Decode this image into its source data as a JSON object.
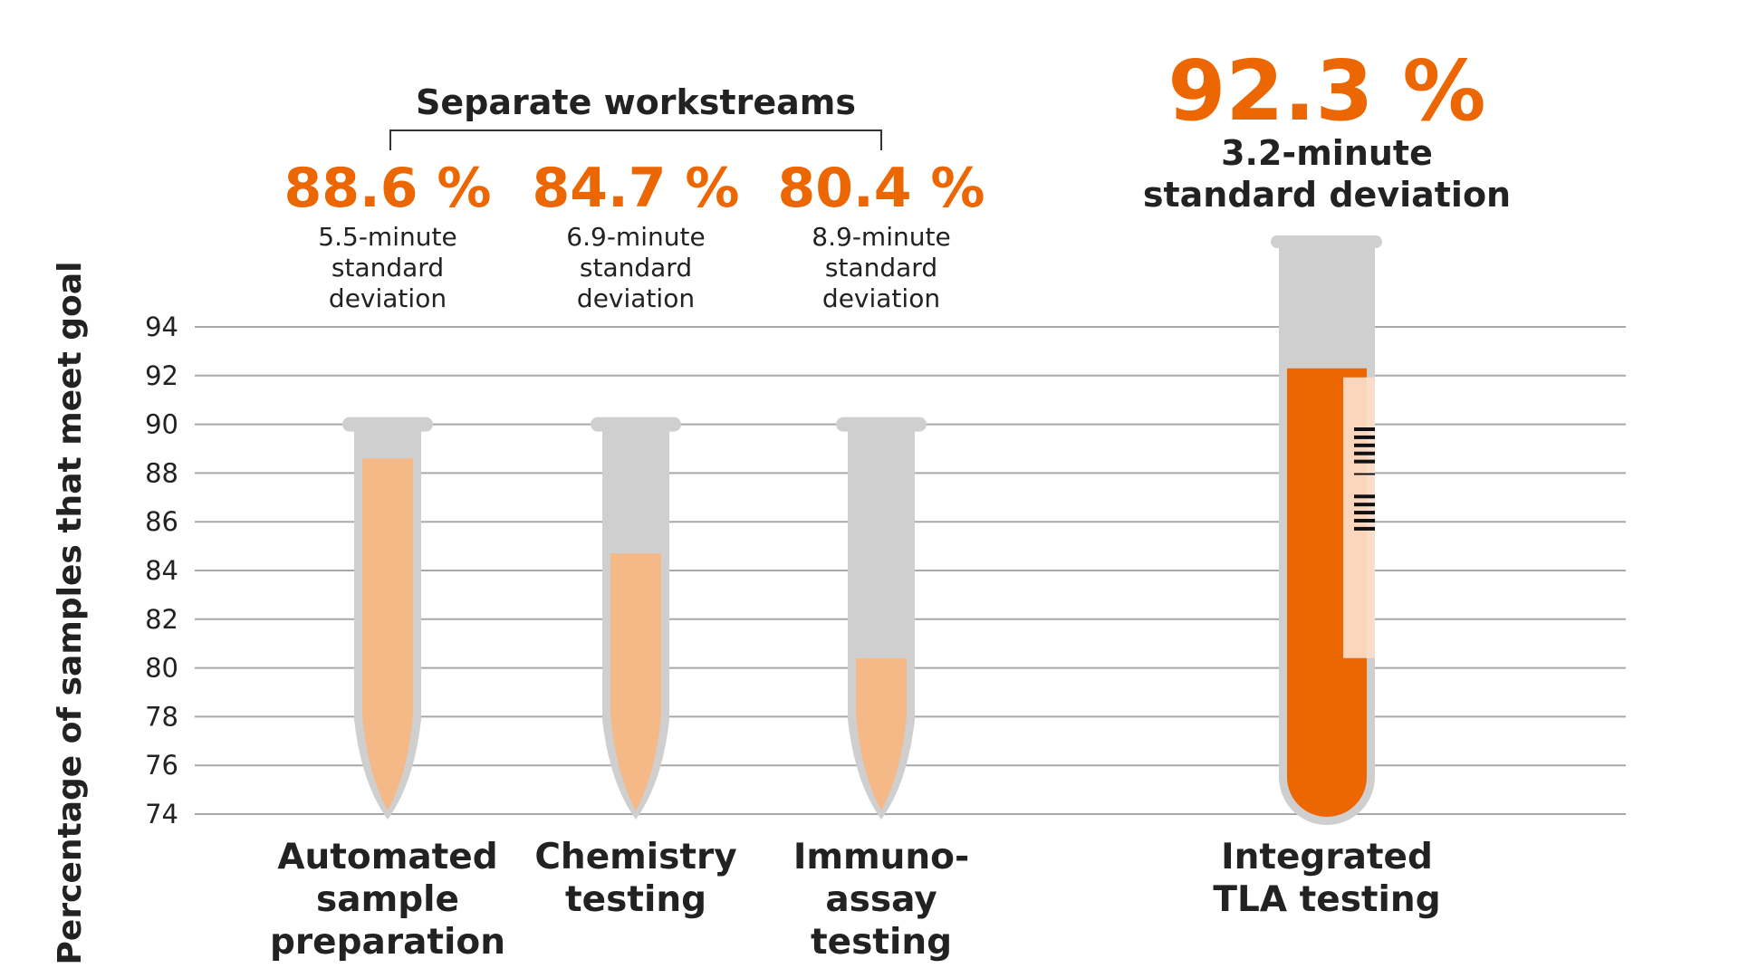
{
  "colors": {
    "accent": "#ec6602",
    "light_fill": "#f5b887",
    "tube": "#cfcfcf",
    "grid": "#a8a8a8",
    "label_strip": "#fde0cc"
  },
  "chart_data": {
    "type": "bar",
    "ylabel": "Percentage of samples that meet goal",
    "ylim": [
      74,
      94
    ],
    "yticks": [
      94,
      92,
      90,
      88,
      86,
      84,
      82,
      80,
      78,
      76,
      74
    ],
    "grid": true,
    "group_label": "Separate workstreams",
    "categories": [
      {
        "label_lines": [
          "Automated",
          "sample",
          "preparation"
        ],
        "value": 88.6,
        "value_label": "88.6 %",
        "sd_lines": [
          "5.5-minute",
          "standard",
          "deviation"
        ]
      },
      {
        "label_lines": [
          "Chemistry",
          "testing"
        ],
        "value": 84.7,
        "value_label": "84.7 %",
        "sd_lines": [
          "6.9-minute",
          "standard",
          "deviation"
        ]
      },
      {
        "label_lines": [
          "Immuno-",
          "assay",
          "testing"
        ],
        "value": 80.4,
        "value_label": "80.4 %",
        "sd_lines": [
          "8.9-minute",
          "standard",
          "deviation"
        ]
      },
      {
        "label_lines": [
          "Integrated",
          "TLA testing"
        ],
        "value": 92.3,
        "value_label": "92.3 %",
        "sd_lines": [
          "3.2-minute",
          "standard deviation"
        ]
      }
    ]
  }
}
